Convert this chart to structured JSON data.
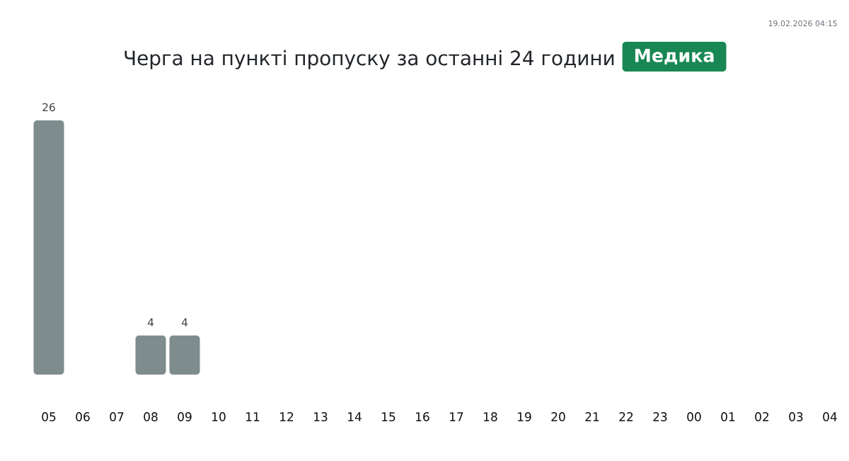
{
  "chart_data": {
    "type": "bar",
    "title": "Черга на пункті пропуску за останні 24 години",
    "subtitle": "Медика",
    "categories": [
      "05",
      "06",
      "07",
      "08",
      "09",
      "10",
      "11",
      "12",
      "13",
      "14",
      "15",
      "16",
      "17",
      "18",
      "19",
      "20",
      "21",
      "22",
      "23",
      "00",
      "01",
      "02",
      "03",
      "04"
    ],
    "values": [
      26,
      null,
      null,
      4,
      4,
      null,
      null,
      null,
      null,
      null,
      null,
      null,
      null,
      null,
      null,
      null,
      null,
      null,
      null,
      null,
      null,
      null,
      null,
      null
    ],
    "color": "#7f8c8d",
    "data_labels": true,
    "annotations": [
      "19.02.2026 04:15"
    ]
  }
}
